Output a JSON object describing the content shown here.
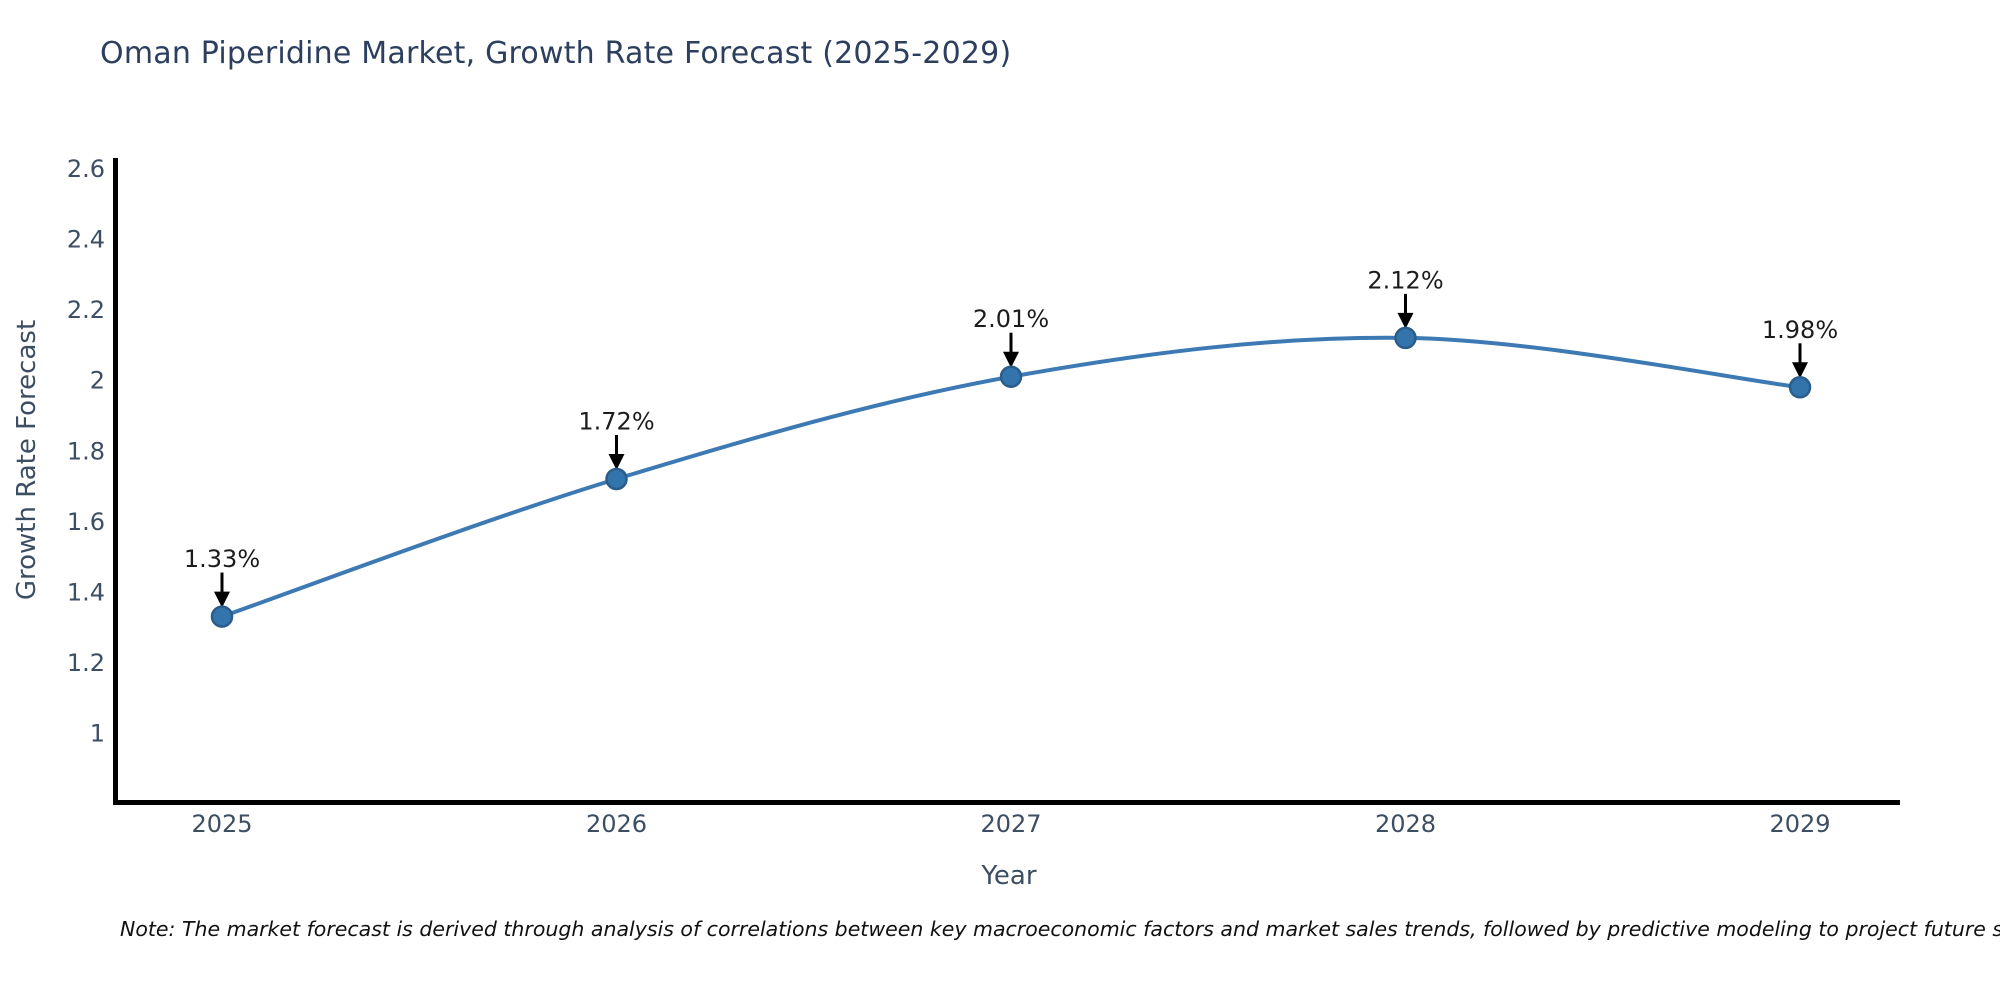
{
  "chart_data": {
    "type": "line",
    "title": "Oman Piperidine Market, Growth Rate Forecast (2025-2029)",
    "xlabel": "Year",
    "ylabel": "Growth Rate Forecast",
    "categories": [
      "2025",
      "2026",
      "2027",
      "2028",
      "2029"
    ],
    "series": [
      {
        "name": "Growth Rate Forecast",
        "values": [
          1.33,
          1.72,
          2.01,
          2.12,
          1.98
        ]
      }
    ],
    "point_labels": [
      "1.33%",
      "1.72%",
      "2.01%",
      "2.12%",
      "1.98%"
    ],
    "yticks": [
      1,
      1.2,
      1.4,
      1.6,
      1.8,
      2,
      2.2,
      2.4,
      2.6
    ],
    "ylim": [
      0.81,
      2.63
    ],
    "grid": false,
    "legend_position": "none",
    "marker_shape": "circle",
    "annotation_arrow": "down-filled-black",
    "colors": {
      "line": "#3d7ab4",
      "marker_fill": "#3474ad",
      "marker_edge": "#2a5d8c",
      "axis": "#000000",
      "tick_text": "#3d4e63",
      "axis_title_text": "#3d4e63",
      "title_text": "#2d3f5e",
      "annotation_text": "#1c1c1c",
      "note_text": "#111111",
      "background": "#ffffff"
    }
  },
  "note": {
    "text": "Note: The market forecast is derived through analysis of correlations between key macroeconomic factors and market sales trends, followed by predictive modeling to project future sales"
  }
}
